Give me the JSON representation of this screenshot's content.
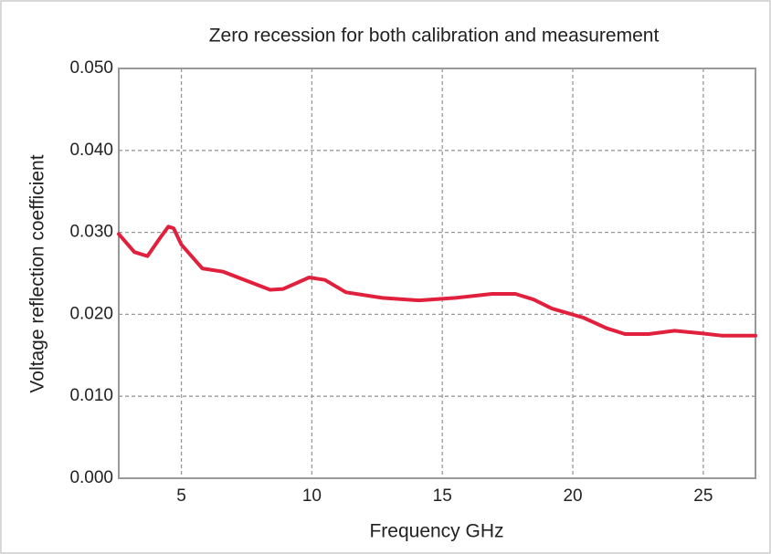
{
  "chart_data": {
    "type": "line",
    "title": "Zero recession for both calibration and measurement",
    "xlabel": "Frequency GHz",
    "ylabel": "Voltage reflection coefficient",
    "x": [
      2.6,
      3.2,
      3.7,
      4.2,
      4.5,
      4.7,
      5.0,
      5.8,
      6.6,
      7.5,
      8.4,
      8.9,
      9.9,
      10.5,
      11.3,
      12.7,
      14.1,
      15.5,
      16.9,
      17.8,
      18.5,
      19.2,
      20.4,
      21.3,
      22.0,
      22.9,
      23.9,
      24.9,
      25.7,
      27.0
    ],
    "series": [
      {
        "name": "Zero recession",
        "color": "#e0203c",
        "values": [
          0.0298,
          0.0276,
          0.0271,
          0.0294,
          0.0307,
          0.0305,
          0.0285,
          0.0256,
          0.0252,
          0.0241,
          0.023,
          0.0231,
          0.0245,
          0.0242,
          0.0227,
          0.022,
          0.0217,
          0.022,
          0.0225,
          0.0225,
          0.0218,
          0.0207,
          0.0196,
          0.0183,
          0.0176,
          0.0176,
          0.018,
          0.0177,
          0.0174,
          0.0174
        ]
      }
    ],
    "xlim": [
      2.6,
      27
    ],
    "xticks": [
      5,
      10,
      15,
      20,
      25
    ],
    "ylim": [
      0,
      0.05
    ],
    "yticks": [
      {
        "value": 0,
        "label": "0.000"
      },
      {
        "value": 0.01,
        "label": "0.010"
      },
      {
        "value": 0.02,
        "label": "0.020"
      },
      {
        "value": 0.03,
        "label": "0.030"
      },
      {
        "value": 0.04,
        "label": "0.040"
      },
      {
        "value": 0.05,
        "label": "0.050"
      }
    ],
    "grid": true
  }
}
